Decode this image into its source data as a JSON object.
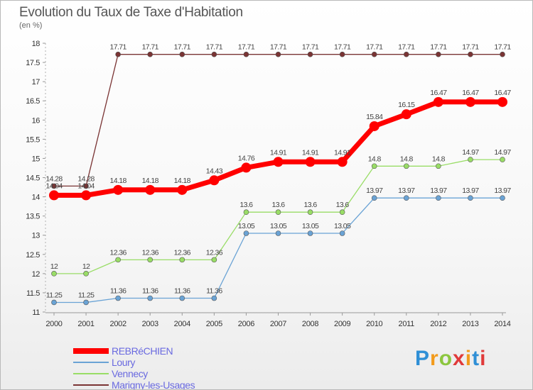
{
  "header": {
    "title": "Evolution du Taux de Taxe d'Habitation",
    "unit": "(en %)"
  },
  "brand": {
    "text": "Proxiti"
  },
  "chart_data": {
    "type": "line",
    "x": [
      "2000",
      "2001",
      "2002",
      "2003",
      "2004",
      "2005",
      "2006",
      "2007",
      "2008",
      "2009",
      "2010",
      "2011",
      "2012",
      "2013",
      "2014"
    ],
    "ylim": [
      11,
      18
    ],
    "yticks": [
      "11",
      "11.5",
      "12",
      "12.5",
      "13",
      "13.5",
      "14",
      "14.5",
      "15",
      "15.5",
      "16",
      "16.5",
      "17",
      "17.5",
      "18"
    ],
    "grid": false,
    "legend_position": "bottom-left",
    "series": [
      {
        "name": "REBRéCHIEN",
        "color": "#ff0000",
        "width": 7,
        "marker": 7,
        "values": [
          14.04,
          14.04,
          14.18,
          14.18,
          14.18,
          14.43,
          14.76,
          14.91,
          14.91,
          14.91,
          15.84,
          16.15,
          16.47,
          16.47,
          16.47
        ],
        "labels": [
          "14.04",
          "14.04",
          "14.18",
          "14.18",
          "14.18",
          "14.43",
          "14.76",
          "14.91",
          "14.91",
          "14.91",
          "15.84",
          "16.15",
          "16.47",
          "16.47",
          "16.47"
        ]
      },
      {
        "name": "Loury",
        "color": "#6aa3d5",
        "width": 1.3,
        "marker": 3.5,
        "values": [
          11.25,
          11.25,
          11.36,
          11.36,
          11.36,
          11.36,
          13.05,
          13.05,
          13.05,
          13.05,
          13.97,
          13.97,
          13.97,
          13.97,
          13.97
        ],
        "labels": [
          "11.25",
          "11.25",
          "11.36",
          "11.36",
          "11.36",
          "11.36",
          "13.05",
          "13.05",
          "13.05",
          "13.05",
          "13.97",
          "13.97",
          "13.97",
          "13.97",
          "13.97"
        ]
      },
      {
        "name": "Vennecy",
        "color": "#99dd66",
        "width": 1.3,
        "marker": 3.5,
        "values": [
          12,
          12,
          12.36,
          12.36,
          12.36,
          12.36,
          13.6,
          13.6,
          13.6,
          13.6,
          14.8,
          14.8,
          14.8,
          14.97,
          14.97
        ],
        "labels": [
          "12",
          "12",
          "12.36",
          "12.36",
          "12.36",
          "12.36",
          "13.6",
          "13.6",
          "13.6",
          "13.6",
          "14.8",
          "14.8",
          "14.8",
          "14.97",
          "14.97"
        ]
      },
      {
        "name": "Marigny-les-Usages",
        "color": "#7a3434",
        "width": 1.3,
        "marker": 3.5,
        "values": [
          14.28,
          14.28,
          17.71,
          17.71,
          17.71,
          17.71,
          17.71,
          17.71,
          17.71,
          17.71,
          17.71,
          17.71,
          17.71,
          17.71,
          17.71
        ],
        "labels": [
          "14.28",
          "14.28",
          "17.71",
          "17.71",
          "17.71",
          "17.71",
          "17.71",
          "17.71",
          "17.71",
          "17.71",
          "17.71",
          "17.71",
          "17.71",
          "17.71",
          "17.71"
        ]
      }
    ]
  }
}
